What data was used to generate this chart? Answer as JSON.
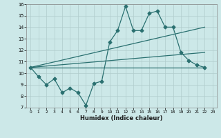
{
  "xlabel": "Humidex (Indice chaleur)",
  "x_all": [
    0,
    1,
    2,
    3,
    4,
    5,
    6,
    7,
    8,
    9,
    10,
    11,
    12,
    13,
    14,
    15,
    16,
    17,
    18,
    19,
    20,
    21,
    22,
    23
  ],
  "line1_x": [
    0,
    1,
    2,
    3,
    4,
    5,
    6,
    7,
    8,
    9
  ],
  "line1_y": [
    10.5,
    9.7,
    9.0,
    9.5,
    8.3,
    8.7,
    8.3,
    7.2,
    9.1,
    9.3
  ],
  "line2_x": [
    10,
    11,
    12,
    13,
    14,
    15,
    16,
    17,
    18
  ],
  "line2_y": [
    12.7,
    13.7,
    15.8,
    13.7,
    13.7,
    15.2,
    15.4,
    14.0,
    14.0
  ],
  "line3_x": [
    19,
    20,
    21,
    22
  ],
  "line3_y": [
    11.8,
    11.1,
    10.7,
    10.5
  ],
  "trend1_x": [
    0,
    22
  ],
  "trend1_y": [
    10.5,
    10.5
  ],
  "trend2_x": [
    0,
    22
  ],
  "trend2_y": [
    10.5,
    11.8
  ],
  "trend3_x": [
    0,
    22
  ],
  "trend3_y": [
    10.5,
    14.0
  ],
  "ylim": [
    7,
    16
  ],
  "xlim": [
    0,
    23
  ],
  "xticks": [
    0,
    1,
    2,
    3,
    4,
    5,
    6,
    7,
    8,
    9,
    10,
    11,
    12,
    13,
    14,
    15,
    16,
    17,
    18,
    19,
    20,
    21,
    22,
    23
  ],
  "yticks": [
    7,
    8,
    9,
    10,
    11,
    12,
    13,
    14,
    15,
    16
  ],
  "line_color": "#2a7070",
  "bg_color": "#cce8e8",
  "grid_color": "#b0cccc"
}
